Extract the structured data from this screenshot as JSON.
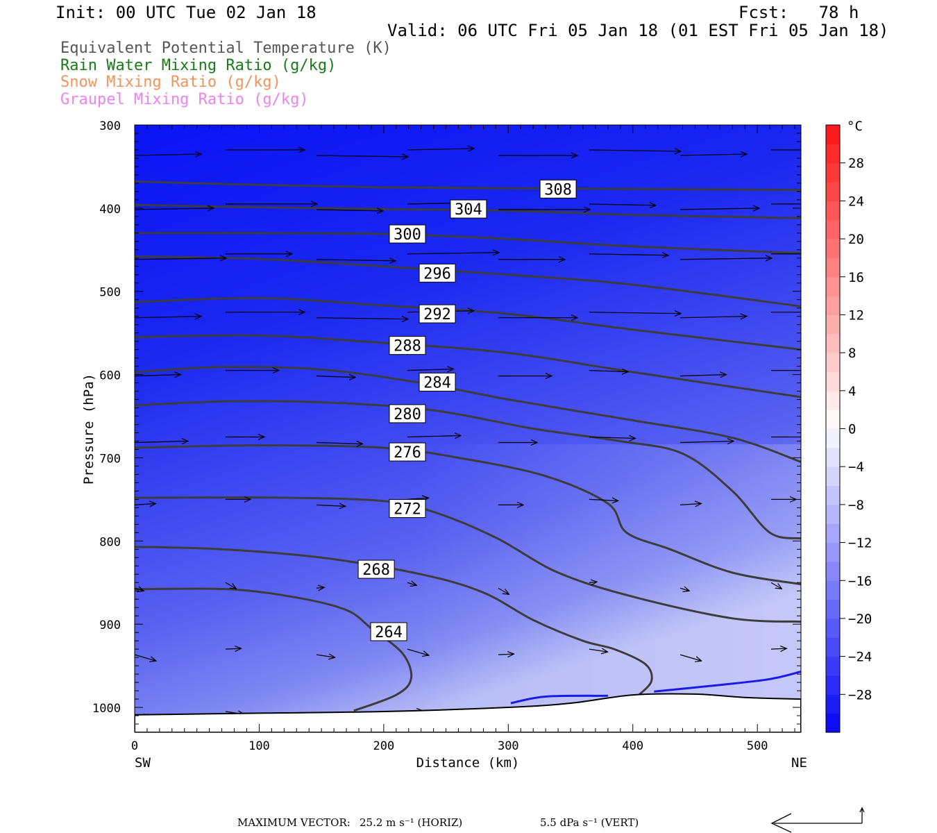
{
  "header": {
    "init": "Init: 00 UTC Tue 02 Jan 18",
    "fcst": "Fcst:   78 h",
    "valid": "Valid: 06 UTC Fri 05 Jan 18 (01 EST Fri 05 Jan 18)"
  },
  "legend": [
    {
      "label": "Equivalent Potential Temperature (K)",
      "color": "#555555"
    },
    {
      "label": "Rain Water Mixing Ratio (g/kg)",
      "color": "#1a7a1a"
    },
    {
      "label": "Snow Mixing Ratio (g/kg)",
      "color": "#f0955a"
    },
    {
      "label": "Graupel Mixing Ratio (g/kg)",
      "color": "#ee82ee"
    }
  ],
  "chart_data": {
    "type": "cross-section",
    "xlabel": "Distance (km)",
    "ylabel": "Pressure (hPa)",
    "xlim": [
      0,
      535
    ],
    "ylim": [
      1030,
      300
    ],
    "x_ticks": [
      0,
      100,
      200,
      300,
      400,
      500
    ],
    "y_ticks": [
      300,
      400,
      500,
      600,
      700,
      800,
      900,
      1000
    ],
    "x_end_labels": {
      "left": "SW",
      "right": "NE"
    },
    "colorbar": {
      "unit": "°C",
      "ticks": [
        28,
        24,
        20,
        16,
        12,
        8,
        4,
        0,
        -4,
        -8,
        -12,
        -16,
        -20,
        -24,
        -28
      ],
      "range": [
        -32,
        32
      ]
    },
    "theta_e_contours": [
      {
        "value": 308,
        "label_pos": [
          340,
          377
        ],
        "points": [
          [
            0,
            368
          ],
          [
            100,
            372
          ],
          [
            200,
            375
          ],
          [
            300,
            376
          ],
          [
            400,
            377
          ],
          [
            535,
            378
          ]
        ]
      },
      {
        "value": 304,
        "label_pos": [
          268,
          401
        ],
        "points": [
          [
            0,
            396
          ],
          [
            100,
            399
          ],
          [
            200,
            401
          ],
          [
            300,
            403
          ],
          [
            400,
            408
          ],
          [
            535,
            412
          ]
        ]
      },
      {
        "value": 300,
        "label_pos": [
          219,
          431
        ],
        "points": [
          [
            0,
            430
          ],
          [
            100,
            430
          ],
          [
            200,
            431
          ],
          [
            300,
            437
          ],
          [
            400,
            446
          ],
          [
            535,
            454
          ]
        ]
      },
      {
        "value": 296,
        "label_pos": [
          243,
          478
        ],
        "points": [
          [
            0,
            458
          ],
          [
            100,
            461
          ],
          [
            200,
            470
          ],
          [
            300,
            480
          ],
          [
            400,
            492
          ],
          [
            535,
            518
          ]
        ]
      },
      {
        "value": 292,
        "label_pos": [
          243,
          527
        ],
        "points": [
          [
            0,
            513
          ],
          [
            100,
            508
          ],
          [
            200,
            517
          ],
          [
            300,
            527
          ],
          [
            400,
            546
          ],
          [
            535,
            570
          ]
        ]
      },
      {
        "value": 288,
        "label_pos": [
          219,
          565
        ],
        "points": [
          [
            0,
            555
          ],
          [
            100,
            553
          ],
          [
            200,
            562
          ],
          [
            300,
            574
          ],
          [
            400,
            597
          ],
          [
            535,
            627
          ]
        ]
      },
      {
        "value": 284,
        "label_pos": [
          243,
          609
        ],
        "points": [
          [
            0,
            597
          ],
          [
            70,
            591
          ],
          [
            150,
            594
          ],
          [
            230,
            610
          ],
          [
            300,
            630
          ],
          [
            400,
            655
          ],
          [
            480,
            676
          ],
          [
            535,
            705
          ]
        ]
      },
      {
        "value": 280,
        "label_pos": [
          219,
          647
        ],
        "points": [
          [
            0,
            637
          ],
          [
            80,
            632
          ],
          [
            160,
            634
          ],
          [
            240,
            643
          ],
          [
            320,
            665
          ],
          [
            390,
            680
          ],
          [
            440,
            695
          ],
          [
            480,
            740
          ],
          [
            510,
            790
          ],
          [
            535,
            797
          ]
        ]
      },
      {
        "value": 276,
        "label_pos": [
          219,
          693
        ],
        "points": [
          [
            0,
            688
          ],
          [
            100,
            685
          ],
          [
            200,
            688
          ],
          [
            260,
            700
          ],
          [
            330,
            722
          ],
          [
            380,
            755
          ],
          [
            395,
            790
          ],
          [
            430,
            810
          ],
          [
            480,
            838
          ],
          [
            535,
            852
          ]
        ]
      },
      {
        "value": 272,
        "label_pos": [
          219,
          761
        ],
        "points": [
          [
            0,
            748
          ],
          [
            120,
            748
          ],
          [
            200,
            752
          ],
          [
            240,
            765
          ],
          [
            290,
            796
          ],
          [
            340,
            838
          ],
          [
            400,
            867
          ],
          [
            480,
            893
          ],
          [
            535,
            897
          ]
        ]
      },
      {
        "value": 268,
        "label_pos": [
          194,
          834
        ],
        "points": [
          [
            0,
            807
          ],
          [
            70,
            810
          ],
          [
            150,
            820
          ],
          [
            230,
            840
          ],
          [
            280,
            862
          ],
          [
            320,
            895
          ],
          [
            360,
            920
          ],
          [
            385,
            930
          ],
          [
            410,
            948
          ],
          [
            415,
            968
          ],
          [
            405,
            985
          ]
        ]
      },
      {
        "value": 264,
        "label_pos": [
          204,
          909
        ],
        "points": [
          [
            0,
            858
          ],
          [
            75,
            858
          ],
          [
            130,
            868
          ],
          [
            170,
            883
          ],
          [
            190,
            905
          ],
          [
            215,
            935
          ],
          [
            222,
            965
          ],
          [
            210,
            985
          ],
          [
            176,
            1004
          ]
        ]
      }
    ],
    "terrain_surface": [
      [
        0,
        1009
      ],
      [
        100,
        1007
      ],
      [
        200,
        1005
      ],
      [
        300,
        1000
      ],
      [
        350,
        995
      ],
      [
        400,
        985
      ],
      [
        450,
        984
      ],
      [
        490,
        988
      ],
      [
        535,
        990
      ]
    ],
    "rain_contours": [
      [
        [
          302,
          995
        ],
        [
          330,
          987
        ],
        [
          380,
          986
        ]
      ],
      [
        [
          417,
          981
        ],
        [
          470,
          973
        ],
        [
          510,
          966
        ],
        [
          535,
          957
        ]
      ]
    ],
    "max_vector": {
      "label": "MAXIMUM VECTOR:",
      "horiz": "25.2 m s⁻¹ (HORIZ)",
      "vert": "5.5 dPa s⁻¹ (VERT)"
    }
  }
}
